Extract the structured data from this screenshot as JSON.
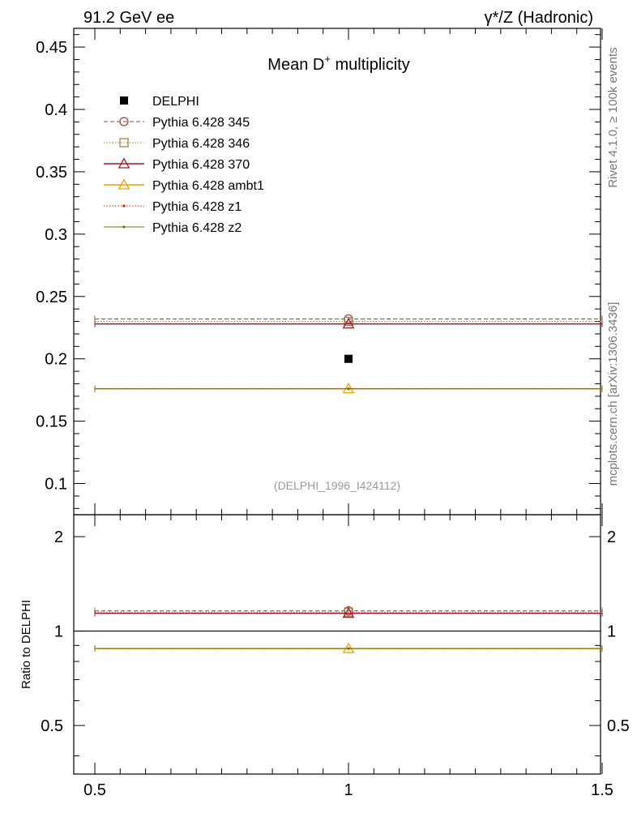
{
  "header": {
    "left": "91.2 GeV ee",
    "right": "γ*/Z (Hadronic)"
  },
  "side": {
    "rivet": "Rivet 4.1.0, ≥ 100k events",
    "mcplots": "mcplots.cern.ch [arXiv:1306.3436]"
  },
  "chart_data": {
    "type": "scatter",
    "title_main": "Mean D",
    "title_sup": "+",
    "title_rest": " multiplicity",
    "analysis_id": "(DELPHI_1996_I424112)",
    "x_range": [
      0.5,
      1.5
    ],
    "y_range": [
      0.075,
      0.465
    ],
    "ratio_range": [
      0.35,
      2.35
    ],
    "ratio_ylabel": "Ratio to DELPHI",
    "x_ticks": [
      {
        "value": 0.5,
        "label": "0.5"
      },
      {
        "value": 1.0,
        "label": "1"
      },
      {
        "value": 1.5,
        "label": "1.5"
      }
    ],
    "y_ticks": [
      {
        "value": 0.1,
        "label": "0.1"
      },
      {
        "value": 0.15,
        "label": "0.15"
      },
      {
        "value": 0.2,
        "label": "0.2"
      },
      {
        "value": 0.25,
        "label": "0.25"
      },
      {
        "value": 0.3,
        "label": "0.3"
      },
      {
        "value": 0.35,
        "label": "0.35"
      },
      {
        "value": 0.4,
        "label": "0.4"
      },
      {
        "value": 0.45,
        "label": "0.45"
      }
    ],
    "ratio_ticks": [
      {
        "value": 0.5,
        "label": "0.5"
      },
      {
        "value": 1,
        "label": "1"
      },
      {
        "value": 2,
        "label": "2"
      }
    ],
    "data_point": {
      "name": "DELPHI",
      "x": 1.0,
      "y": 0.2
    },
    "series": [
      {
        "name": "Pythia 6.428 345",
        "value": 0.232,
        "ratio": 1.16,
        "color": "#b03a3a",
        "dash": "5,3",
        "marker": "circle",
        "width": 1
      },
      {
        "name": "Pythia 6.428 346",
        "value": 0.23,
        "ratio": 1.15,
        "color": "#9a7a3a",
        "dash": "1.5,2",
        "marker": "square",
        "width": 1
      },
      {
        "name": "Pythia 6.428 370",
        "value": 0.228,
        "ratio": 1.14,
        "color": "#9e1a2a",
        "dash": "",
        "marker": "triangle",
        "width": 1.5
      },
      {
        "name": "Pythia 6.428 ambt1",
        "value": 0.176,
        "ratio": 0.88,
        "color": "#f0a000",
        "dash": "",
        "marker": "triangle",
        "width": 1.5
      },
      {
        "name": "Pythia 6.428 z1",
        "value": 0.176,
        "ratio": 0.88,
        "color": "#cc2200",
        "dash": "1.5,2",
        "marker": "dot",
        "width": 1
      },
      {
        "name": "Pythia 6.428 z2",
        "value": 0.176,
        "ratio": 0.88,
        "color": "#707000",
        "dash": "",
        "marker": "dot",
        "width": 1
      }
    ]
  }
}
